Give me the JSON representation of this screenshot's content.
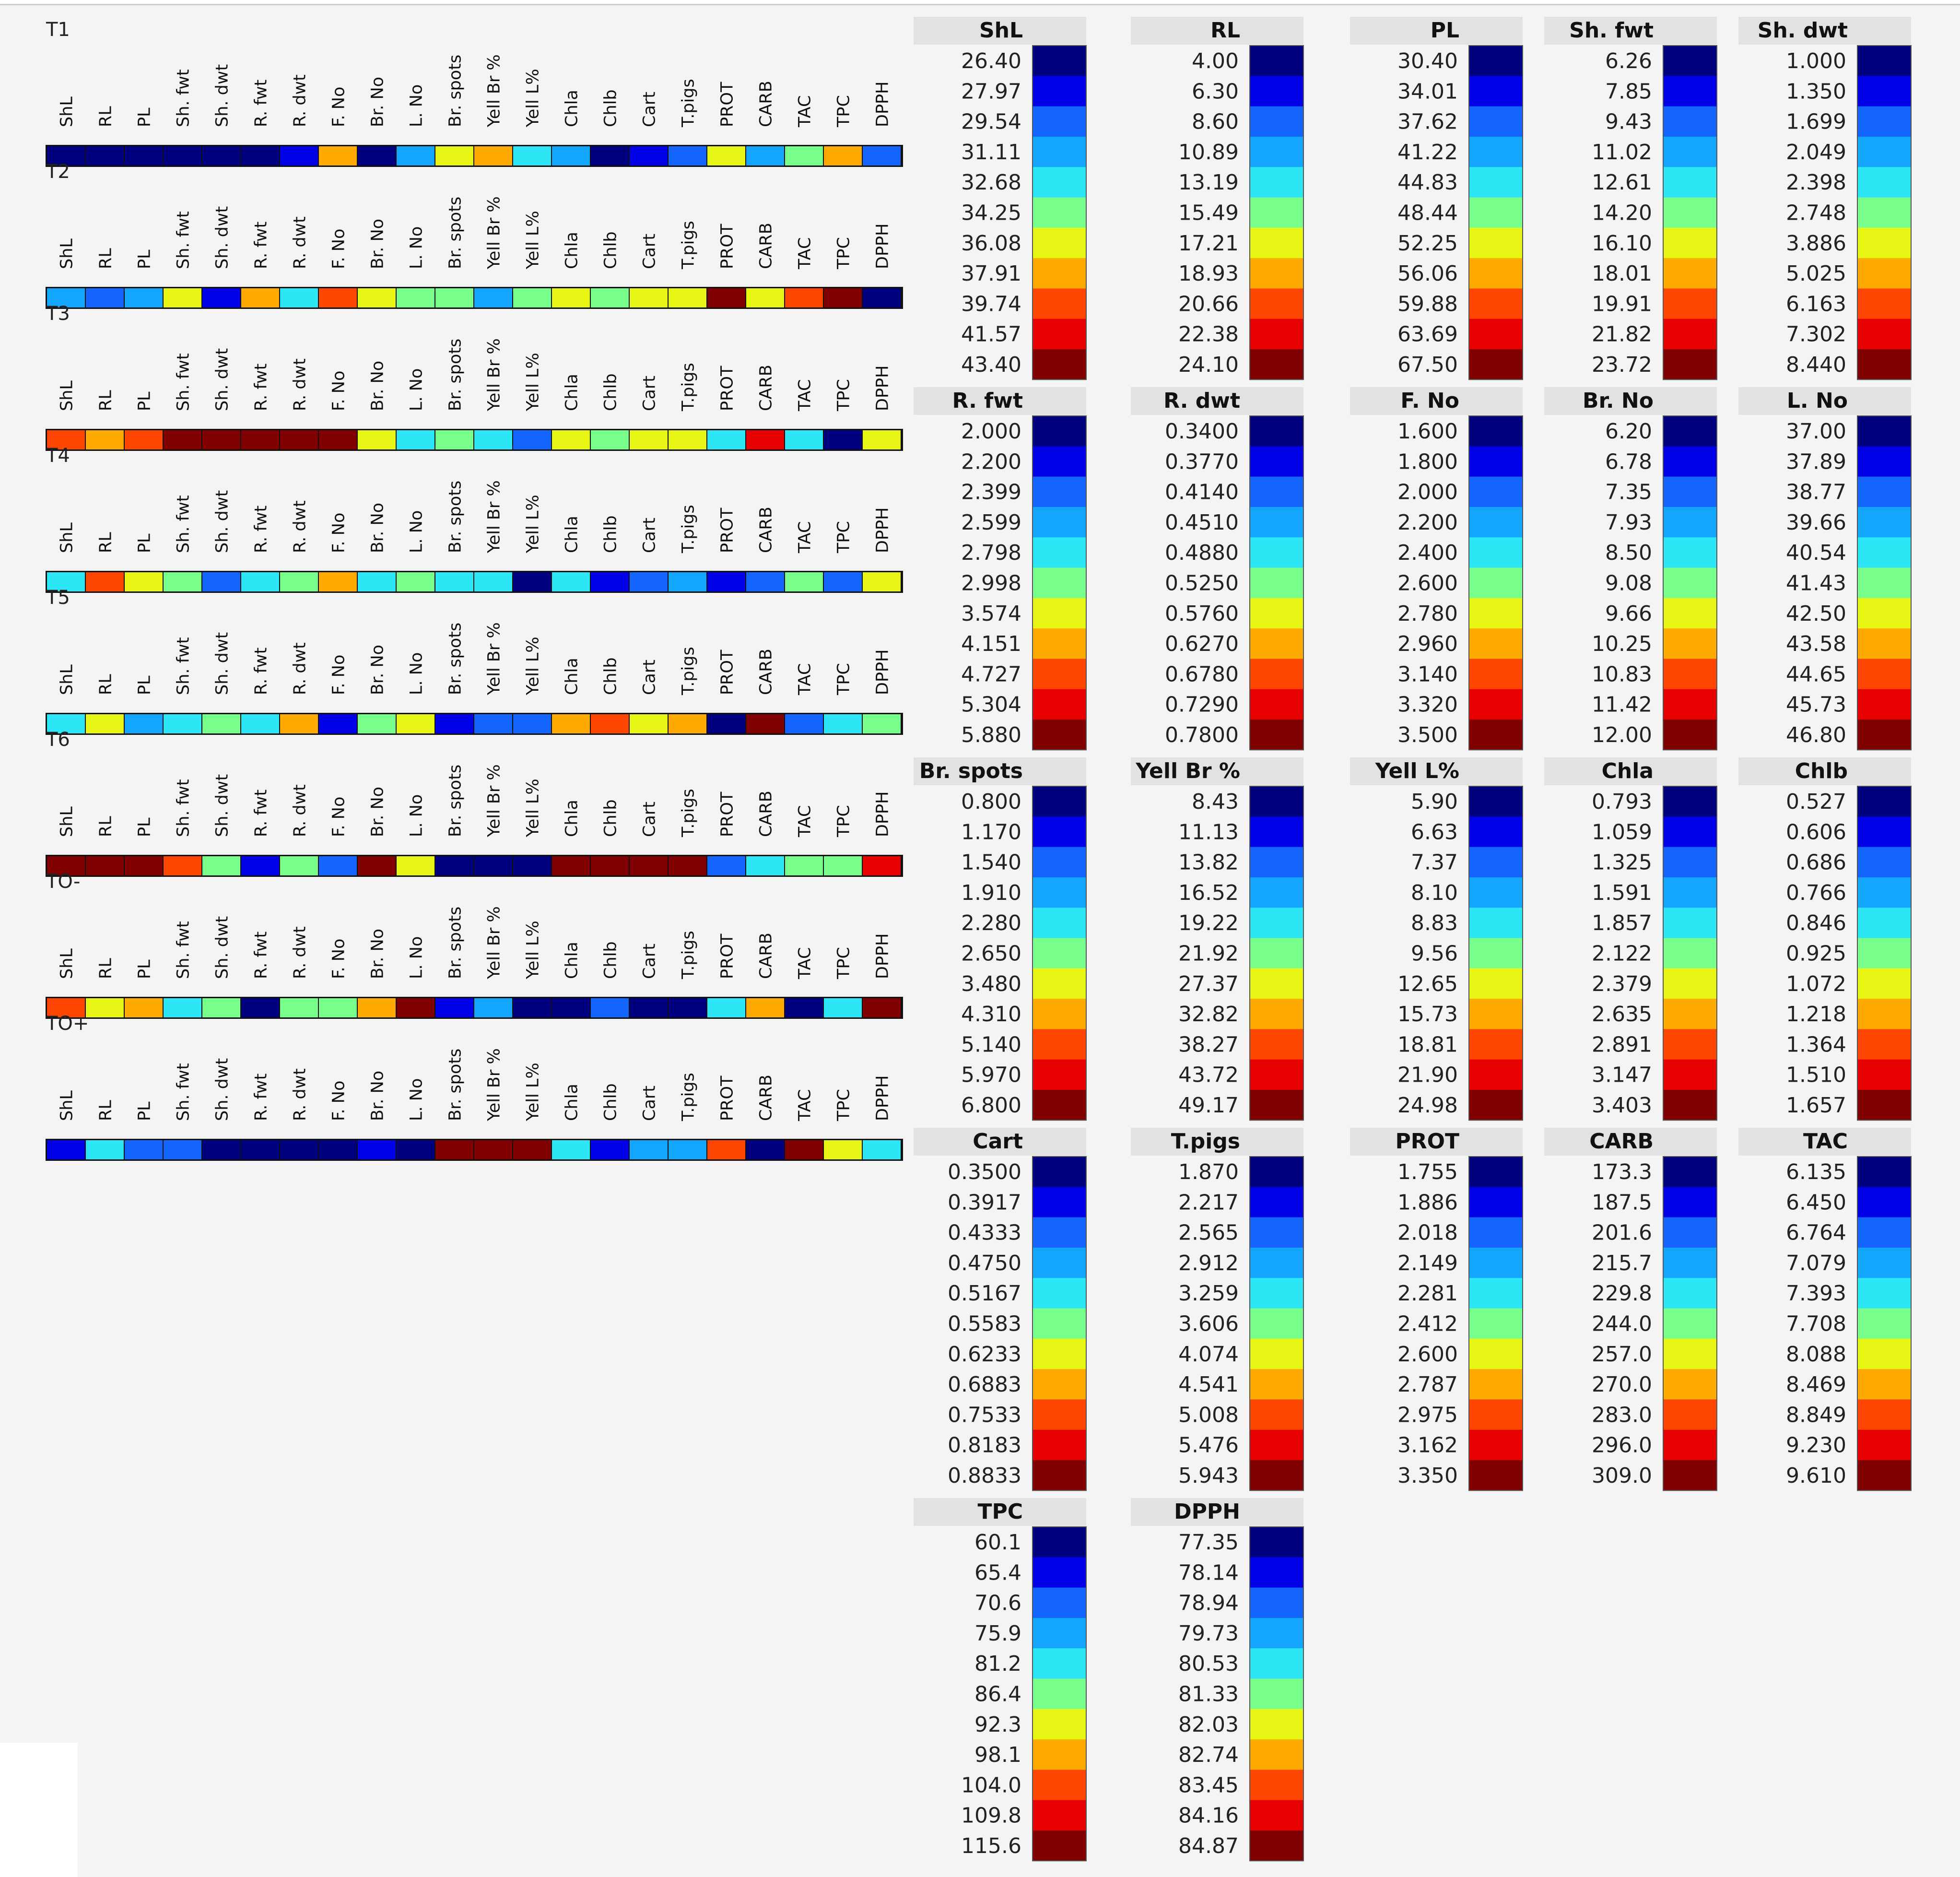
{
  "palette": [
    "#00007f",
    "#0000e6",
    "#1464ff",
    "#14a5ff",
    "#2de6f5",
    "#78ff8c",
    "#e6f514",
    "#ffaa00",
    "#ff4600",
    "#e60000",
    "#800000"
  ],
  "chart_data": {
    "type": "heatmap",
    "columns": [
      "ShL",
      "RL",
      "PL",
      "Sh. fwt",
      "Sh. dwt",
      "R. fwt",
      "R. dwt",
      "F. No",
      "Br. No",
      "L. No",
      "Br. spots",
      "Yell Br %",
      "Yell L%",
      "Chla",
      "Chlb",
      "Cart",
      "T.pigs",
      "PROT",
      "CARB",
      "TAC",
      "TPC",
      "DPPH"
    ],
    "rows": [
      {
        "label": "T1",
        "levels": [
          0,
          0,
          0,
          0,
          0,
          0,
          1,
          7,
          0,
          3,
          6,
          7,
          4,
          3,
          0,
          1,
          2,
          6,
          3,
          5,
          7,
          2
        ]
      },
      {
        "label": "T2",
        "levels": [
          3,
          2,
          3,
          6,
          1,
          7,
          4,
          8,
          6,
          5,
          5,
          3,
          5,
          6,
          5,
          6,
          6,
          10,
          6,
          8,
          10,
          0
        ]
      },
      {
        "label": "T3",
        "levels": [
          8,
          7,
          8,
          10,
          10,
          10,
          10,
          10,
          6,
          4,
          5,
          4,
          2,
          6,
          5,
          6,
          6,
          4,
          9,
          4,
          0,
          6
        ]
      },
      {
        "label": "T4",
        "levels": [
          4,
          8,
          6,
          5,
          2,
          4,
          5,
          7,
          4,
          5,
          4,
          4,
          0,
          4,
          1,
          2,
          3,
          1,
          2,
          5,
          2,
          6
        ]
      },
      {
        "label": "T5",
        "levels": [
          4,
          6,
          3,
          4,
          5,
          4,
          7,
          1,
          5,
          6,
          1,
          2,
          2,
          7,
          8,
          6,
          7,
          0,
          10,
          2,
          4,
          5
        ]
      },
      {
        "label": "T6",
        "levels": [
          10,
          10,
          10,
          8,
          5,
          1,
          5,
          2,
          10,
          6,
          0,
          0,
          0,
          10,
          10,
          10,
          10,
          2,
          4,
          5,
          5,
          9
        ]
      },
      {
        "label": "TO-",
        "levels": [
          8,
          6,
          7,
          4,
          5,
          0,
          5,
          5,
          7,
          10,
          1,
          3,
          0,
          0,
          2,
          0,
          0,
          4,
          7,
          0,
          4,
          10
        ]
      },
      {
        "label": "TO+",
        "levels": [
          1,
          4,
          2,
          2,
          0,
          0,
          0,
          0,
          1,
          0,
          10,
          10,
          10,
          4,
          1,
          3,
          3,
          8,
          0,
          10,
          6,
          4
        ]
      }
    ],
    "legends": [
      {
        "title": "ShL",
        "ticks": [
          "26.40",
          "27.97",
          "29.54",
          "31.11",
          "32.68",
          "34.25",
          "36.08",
          "37.91",
          "39.74",
          "41.57",
          "43.40"
        ]
      },
      {
        "title": "RL",
        "ticks": [
          "4.00",
          "6.30",
          "8.60",
          "10.89",
          "13.19",
          "15.49",
          "17.21",
          "18.93",
          "20.66",
          "22.38",
          "24.10"
        ]
      },
      {
        "title": "PL",
        "ticks": [
          "30.40",
          "34.01",
          "37.62",
          "41.22",
          "44.83",
          "48.44",
          "52.25",
          "56.06",
          "59.88",
          "63.69",
          "67.50"
        ]
      },
      {
        "title": "Sh. fwt",
        "ticks": [
          "6.26",
          "7.85",
          "9.43",
          "11.02",
          "12.61",
          "14.20",
          "16.10",
          "18.01",
          "19.91",
          "21.82",
          "23.72"
        ]
      },
      {
        "title": "Sh. dwt",
        "ticks": [
          "1.000",
          "1.350",
          "1.699",
          "2.049",
          "2.398",
          "2.748",
          "3.886",
          "5.025",
          "6.163",
          "7.302",
          "8.440"
        ]
      },
      {
        "title": "R. fwt",
        "ticks": [
          "2.000",
          "2.200",
          "2.399",
          "2.599",
          "2.798",
          "2.998",
          "3.574",
          "4.151",
          "4.727",
          "5.304",
          "5.880"
        ]
      },
      {
        "title": "R. dwt",
        "ticks": [
          "0.3400",
          "0.3770",
          "0.4140",
          "0.4510",
          "0.4880",
          "0.5250",
          "0.5760",
          "0.6270",
          "0.6780",
          "0.7290",
          "0.7800"
        ]
      },
      {
        "title": "F. No",
        "ticks": [
          "1.600",
          "1.800",
          "2.000",
          "2.200",
          "2.400",
          "2.600",
          "2.780",
          "2.960",
          "3.140",
          "3.320",
          "3.500"
        ]
      },
      {
        "title": "Br. No",
        "ticks": [
          "6.20",
          "6.78",
          "7.35",
          "7.93",
          "8.50",
          "9.08",
          "9.66",
          "10.25",
          "10.83",
          "11.42",
          "12.00"
        ]
      },
      {
        "title": "L. No",
        "ticks": [
          "37.00",
          "37.89",
          "38.77",
          "39.66",
          "40.54",
          "41.43",
          "42.50",
          "43.58",
          "44.65",
          "45.73",
          "46.80"
        ]
      },
      {
        "title": "Br. spots",
        "ticks": [
          "0.800",
          "1.170",
          "1.540",
          "1.910",
          "2.280",
          "2.650",
          "3.480",
          "4.310",
          "5.140",
          "5.970",
          "6.800"
        ]
      },
      {
        "title": "Yell Br %",
        "ticks": [
          "8.43",
          "11.13",
          "13.82",
          "16.52",
          "19.22",
          "21.92",
          "27.37",
          "32.82",
          "38.27",
          "43.72",
          "49.17"
        ]
      },
      {
        "title": "Yell L%",
        "ticks": [
          "5.90",
          "6.63",
          "7.37",
          "8.10",
          "8.83",
          "9.56",
          "12.65",
          "15.73",
          "18.81",
          "21.90",
          "24.98"
        ]
      },
      {
        "title": "Chla",
        "ticks": [
          "0.793",
          "1.059",
          "1.325",
          "1.591",
          "1.857",
          "2.122",
          "2.379",
          "2.635",
          "2.891",
          "3.147",
          "3.403"
        ]
      },
      {
        "title": "Chlb",
        "ticks": [
          "0.527",
          "0.606",
          "0.686",
          "0.766",
          "0.846",
          "0.925",
          "1.072",
          "1.218",
          "1.364",
          "1.510",
          "1.657"
        ]
      },
      {
        "title": "Cart",
        "ticks": [
          "0.3500",
          "0.3917",
          "0.4333",
          "0.4750",
          "0.5167",
          "0.5583",
          "0.6233",
          "0.6883",
          "0.7533",
          "0.8183",
          "0.8833"
        ]
      },
      {
        "title": "T.pigs",
        "ticks": [
          "1.870",
          "2.217",
          "2.565",
          "2.912",
          "3.259",
          "3.606",
          "4.074",
          "4.541",
          "5.008",
          "5.476",
          "5.943"
        ]
      },
      {
        "title": "PROT",
        "ticks": [
          "1.755",
          "1.886",
          "2.018",
          "2.149",
          "2.281",
          "2.412",
          "2.600",
          "2.787",
          "2.975",
          "3.162",
          "3.350"
        ]
      },
      {
        "title": "CARB",
        "ticks": [
          "173.3",
          "187.5",
          "201.6",
          "215.7",
          "229.8",
          "244.0",
          "257.0",
          "270.0",
          "283.0",
          "296.0",
          "309.0"
        ]
      },
      {
        "title": "TAC",
        "ticks": [
          "6.135",
          "6.450",
          "6.764",
          "7.079",
          "7.393",
          "7.708",
          "8.088",
          "8.469",
          "8.849",
          "9.230",
          "9.610"
        ]
      },
      {
        "title": "TPC",
        "ticks": [
          "60.1",
          "65.4",
          "70.6",
          "75.9",
          "81.2",
          "86.4",
          "92.3",
          "98.1",
          "104.0",
          "109.8",
          "115.6"
        ]
      },
      {
        "title": "DPPH",
        "ticks": [
          "77.35",
          "78.14",
          "78.94",
          "79.73",
          "80.53",
          "81.33",
          "82.03",
          "82.74",
          "83.45",
          "84.16",
          "84.87"
        ]
      }
    ]
  }
}
